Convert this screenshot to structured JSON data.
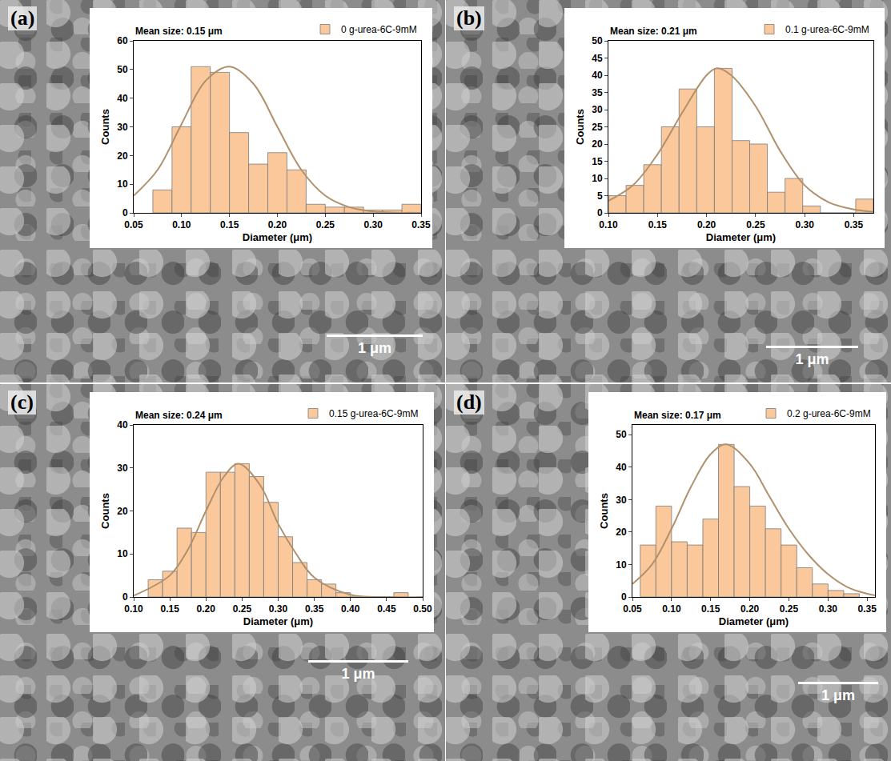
{
  "chart_data": [
    {
      "type": "histogram",
      "panel": "(a)",
      "scale_bar": "1 μm",
      "x_label": "Diameter (μm)",
      "y_label": "Counts",
      "annotations": [
        "Mean size: 0.15 μm"
      ],
      "legend": "above",
      "grid": false,
      "xlim": [
        0.05,
        0.35
      ],
      "xticks": [
        {
          "value": 0.05,
          "label": "0.05"
        },
        {
          "value": 0.1,
          "label": "0.10"
        },
        {
          "value": 0.15,
          "label": "0.15"
        },
        {
          "value": 0.2,
          "label": "0.20"
        },
        {
          "value": 0.25,
          "label": "0.25"
        },
        {
          "value": 0.3,
          "label": "0.30"
        },
        {
          "value": 0.35,
          "label": "0.35"
        }
      ],
      "ylim": [
        0,
        60
      ],
      "yticks": [
        0,
        10,
        20,
        30,
        40,
        50,
        60
      ],
      "series": [
        {
          "name": "0 g-urea-6C-9mM",
          "type": "bar",
          "color": "#fbc89c",
          "bins": [
            0.07,
            0.09,
            0.11,
            0.13,
            0.15,
            0.17,
            0.19,
            0.21,
            0.23,
            0.25,
            0.27,
            0.29,
            0.31,
            0.33,
            0.35
          ],
          "values": [
            8,
            30,
            51,
            49,
            28,
            17,
            21,
            15,
            3,
            2,
            2,
            1,
            1,
            3
          ]
        },
        {
          "type": "line",
          "color": "#b0916c",
          "x": [
            0.05,
            0.075,
            0.1,
            0.125,
            0.15,
            0.175,
            0.2,
            0.225,
            0.25,
            0.275,
            0.3,
            0.325,
            0.35
          ],
          "values": [
            6,
            15,
            31,
            46,
            51,
            45,
            30,
            15,
            6,
            2,
            0.5,
            0.1,
            0
          ]
        }
      ]
    },
    {
      "type": "histogram",
      "panel": "(b)",
      "scale_bar": "1 μm",
      "x_label": "Diameter (μm)",
      "y_label": "Counts",
      "annotations": [
        "Mean size: 0.21 μm"
      ],
      "legend": "above",
      "grid": false,
      "xlim": [
        0.1,
        0.37
      ],
      "xticks": [
        {
          "value": 0.1,
          "label": "0.10"
        },
        {
          "value": 0.15,
          "label": "0.15"
        },
        {
          "value": 0.2,
          "label": "0.20"
        },
        {
          "value": 0.25,
          "label": "0.25"
        },
        {
          "value": 0.3,
          "label": "0.30"
        },
        {
          "value": 0.35,
          "label": "0.35"
        }
      ],
      "ylim": [
        0,
        50
      ],
      "yticks": [
        0,
        5,
        10,
        15,
        20,
        25,
        30,
        35,
        40,
        45,
        50
      ],
      "series": [
        {
          "name": "0.1 g-urea-6C-9mM",
          "type": "bar",
          "color": "#fbc89c",
          "bins": [
            0.1,
            0.118,
            0.136,
            0.154,
            0.172,
            0.19,
            0.208,
            0.226,
            0.244,
            0.262,
            0.28,
            0.298,
            0.316,
            0.334,
            0.352,
            0.37
          ],
          "values": [
            5,
            8,
            14,
            25,
            36,
            25,
            42,
            21,
            20,
            6,
            10,
            2,
            0,
            0,
            4
          ]
        },
        {
          "type": "line",
          "color": "#b0916c",
          "x": [
            0.1,
            0.125,
            0.15,
            0.175,
            0.2,
            0.21,
            0.225,
            0.25,
            0.275,
            0.3,
            0.325,
            0.35,
            0.37
          ],
          "values": [
            3.5,
            8,
            17,
            29,
            40,
            42,
            40,
            31,
            18,
            8,
            3,
            1,
            0.3
          ]
        }
      ]
    },
    {
      "type": "histogram",
      "panel": "(c)",
      "scale_bar": "1 μm",
      "x_label": "Diameter (μm)",
      "y_label": "Counts",
      "annotations": [
        "Mean size: 0.24 μm"
      ],
      "legend": "above",
      "grid": false,
      "xlim": [
        0.1,
        0.5
      ],
      "xticks": [
        {
          "value": 0.1,
          "label": "0.10"
        },
        {
          "value": 0.15,
          "label": "0.15"
        },
        {
          "value": 0.2,
          "label": "0.20"
        },
        {
          "value": 0.25,
          "label": "0.25"
        },
        {
          "value": 0.3,
          "label": "0.30"
        },
        {
          "value": 0.35,
          "label": "0.35"
        },
        {
          "value": 0.4,
          "label": "0.40"
        },
        {
          "value": 0.45,
          "label": "0.45"
        },
        {
          "value": 0.5,
          "label": "0.50"
        }
      ],
      "ylim": [
        0,
        40
      ],
      "yticks": [
        0,
        10,
        20,
        30,
        40
      ],
      "series": [
        {
          "name": "0.15 g-urea-6C-9mM",
          "type": "bar",
          "color": "#fbc89c",
          "bins": [
            0.12,
            0.14,
            0.16,
            0.18,
            0.2,
            0.22,
            0.24,
            0.26,
            0.28,
            0.3,
            0.32,
            0.34,
            0.36,
            0.38,
            0.4,
            0.42,
            0.44,
            0.46,
            0.48
          ],
          "values": [
            4,
            6,
            16,
            15,
            29,
            29,
            31,
            28,
            22,
            14,
            8,
            4,
            3,
            1,
            0,
            0,
            0,
            1
          ]
        },
        {
          "type": "line",
          "color": "#b0916c",
          "x": [
            0.1,
            0.15,
            0.175,
            0.2,
            0.225,
            0.245,
            0.275,
            0.3,
            0.325,
            0.35,
            0.4,
            0.45,
            0.5
          ],
          "values": [
            0.3,
            5,
            11,
            20,
            28,
            31,
            26,
            17,
            10,
            4.5,
            0.5,
            0,
            0
          ]
        }
      ]
    },
    {
      "type": "histogram",
      "panel": "(d)",
      "scale_bar": "1 μm",
      "x_label": "Diameter (μm)",
      "y_label": "Counts",
      "annotations": [
        "Mean size: 0.17 μm"
      ],
      "legend": "above",
      "grid": false,
      "xlim": [
        0.05,
        0.36
      ],
      "xticks": [
        {
          "value": 0.05,
          "label": "0.05"
        },
        {
          "value": 0.1,
          "label": "0.10"
        },
        {
          "value": 0.15,
          "label": "0.15"
        },
        {
          "value": 0.2,
          "label": "0.20"
        },
        {
          "value": 0.25,
          "label": "0.25"
        },
        {
          "value": 0.3,
          "label": "0.30"
        },
        {
          "value": 0.35,
          "label": "0.35"
        }
      ],
      "ylim": [
        0,
        53
      ],
      "yticks": [
        0,
        10,
        20,
        30,
        40,
        50
      ],
      "series": [
        {
          "name": "0.2 g-urea-6C-9mM",
          "type": "bar",
          "color": "#fbc89c",
          "bins": [
            0.06,
            0.08,
            0.1,
            0.12,
            0.14,
            0.16,
            0.18,
            0.2,
            0.22,
            0.24,
            0.26,
            0.28,
            0.3,
            0.32,
            0.34
          ],
          "values": [
            16,
            28,
            17,
            16,
            24,
            47,
            34,
            28,
            21,
            16,
            9,
            4,
            2,
            1
          ]
        },
        {
          "type": "line",
          "color": "#b0916c",
          "x": [
            0.05,
            0.075,
            0.1,
            0.125,
            0.15,
            0.17,
            0.2,
            0.225,
            0.25,
            0.275,
            0.3,
            0.325,
            0.35,
            0.36
          ],
          "values": [
            4,
            10,
            21,
            34,
            44,
            47,
            41,
            31,
            21,
            13,
            7,
            3,
            1,
            0.5
          ]
        }
      ]
    }
  ]
}
